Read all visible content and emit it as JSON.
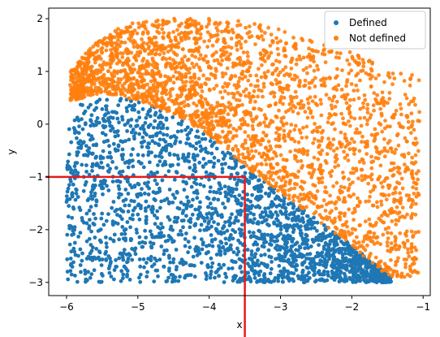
{
  "chart_data": {
    "type": "scatter",
    "xlabel": "x",
    "ylabel": "y",
    "xlim": [
      -6.25,
      -0.9
    ],
    "ylim": [
      -3.25,
      2.2
    ],
    "x_ticks": [
      {
        "value": -6,
        "label": "−6"
      },
      {
        "value": -5,
        "label": "−5"
      },
      {
        "value": -4,
        "label": "−4"
      },
      {
        "value": -3,
        "label": "−3"
      },
      {
        "value": -2,
        "label": "−2"
      },
      {
        "value": -1,
        "label": "−1"
      }
    ],
    "y_ticks": [
      {
        "value": -3,
        "label": "−3"
      },
      {
        "value": -2,
        "label": "−2"
      },
      {
        "value": -1,
        "label": "−1"
      },
      {
        "value": 0,
        "label": "0"
      },
      {
        "value": 1,
        "label": "1"
      },
      {
        "value": 2,
        "label": "2"
      }
    ],
    "legend_position": "top-right",
    "grid": false,
    "series": [
      {
        "name": "Defined",
        "color": "#1f77b4",
        "region": {
          "x_range": [
            -6.0,
            -1.45
          ],
          "y_bottom": -3.0,
          "upper_boundary": [
            [
              -6.0,
              0.3
            ],
            [
              -5.5,
              0.55
            ],
            [
              -5.0,
              0.45
            ],
            [
              -4.5,
              0.2
            ],
            [
              -4.0,
              -0.2
            ],
            [
              -3.5,
              -0.8
            ],
            [
              -3.0,
              -1.3
            ],
            [
              -2.5,
              -1.8
            ],
            [
              -2.0,
              -2.3
            ],
            [
              -1.45,
              -2.9
            ]
          ]
        }
      },
      {
        "name": "Not defined",
        "color": "#ff7f0e",
        "region": {
          "x_range": [
            -5.95,
            -1.05
          ],
          "lower_boundary": [
            [
              -5.9,
              0.45
            ],
            [
              -5.5,
              0.6
            ],
            [
              -5.0,
              0.45
            ],
            [
              -4.5,
              0.2
            ],
            [
              -4.0,
              -0.2
            ],
            [
              -3.5,
              -0.8
            ],
            [
              -3.0,
              -1.3
            ],
            [
              -2.5,
              -1.8
            ],
            [
              -2.0,
              -2.3
            ],
            [
              -1.5,
              -2.9
            ]
          ],
          "upper_boundary": [
            [
              -5.95,
              1.0
            ],
            [
              -5.5,
              1.7
            ],
            [
              -5.0,
              1.95
            ],
            [
              -4.5,
              2.0
            ],
            [
              -4.0,
              2.0
            ],
            [
              -3.5,
              1.95
            ],
            [
              -3.0,
              1.8
            ],
            [
              -2.5,
              1.6
            ],
            [
              -2.0,
              1.4
            ],
            [
              -1.5,
              1.05
            ],
            [
              -1.05,
              0.9
            ]
          ]
        }
      }
    ],
    "annotations": [
      {
        "type": "red-lines",
        "color": "#e41a1c",
        "corner": [
          -3.5,
          -1.0
        ]
      }
    ]
  }
}
